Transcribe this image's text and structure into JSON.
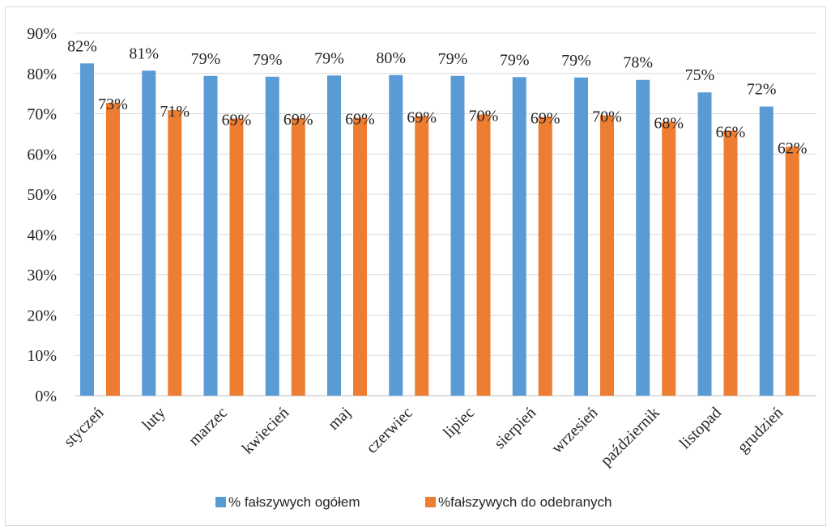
{
  "chart_data": {
    "type": "bar",
    "categories": [
      "styczeń",
      "luty",
      "marzec",
      "kwiecień",
      "maj",
      "czerwiec",
      "lipiec",
      "sierpień",
      "wrzesień",
      "październik",
      "listopad",
      "grudzień"
    ],
    "series": [
      {
        "name": "% fałszywych ogółem",
        "values": [
          82.5,
          80.7,
          79.4,
          79.2,
          79.5,
          79.6,
          79.4,
          79.1,
          79.0,
          78.4,
          75.3,
          71.8
        ],
        "labels": [
          "82%",
          "81%",
          "79%",
          "79%",
          "79%",
          "80%",
          "79%",
          "79%",
          "79%",
          "78%",
          "75%",
          "72%"
        ],
        "color": "#5b9bd5"
      },
      {
        "name": "%fałszywych do odebranych",
        "values": [
          72.7,
          70.9,
          68.8,
          68.9,
          69.0,
          69.4,
          69.8,
          69.2,
          69.6,
          68.0,
          65.8,
          61.8
        ],
        "labels": [
          "73%",
          "71%",
          "69%",
          "69%",
          "69%",
          "69%",
          "70%",
          "69%",
          "70%",
          "68%",
          "66%",
          "62%"
        ],
        "color": "#ed7d31"
      }
    ],
    "ylim": [
      0,
      90
    ],
    "yticks": [
      0,
      10,
      20,
      30,
      40,
      50,
      60,
      70,
      80,
      90
    ],
    "ytick_labels": [
      "0%",
      "10%",
      "20%",
      "30%",
      "40%",
      "50%",
      "60%",
      "70%",
      "80%",
      "90%"
    ],
    "grid": true,
    "legend_position": "bottom",
    "title": "",
    "xlabel": "",
    "ylabel": ""
  }
}
